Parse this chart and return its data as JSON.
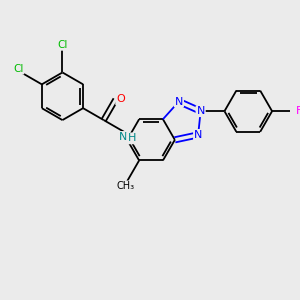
{
  "background_color": "#ebebeb",
  "bond_color": "#000000",
  "atom_colors": {
    "Cl": "#00bb00",
    "O": "#ff0000",
    "N": "#0000ff",
    "F": "#ff00ff",
    "NH": "#008888",
    "C": "#000000"
  },
  "figsize": [
    3.0,
    3.0
  ],
  "dpi": 100
}
